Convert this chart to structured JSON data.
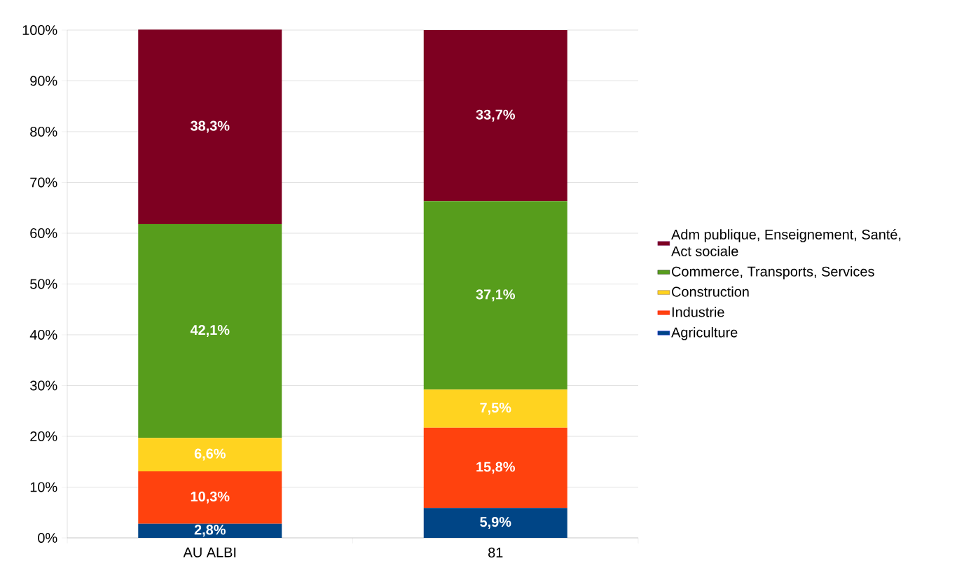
{
  "chart_data": {
    "type": "bar",
    "stacked": true,
    "categories": [
      "AU ALBI",
      "81"
    ],
    "series": [
      {
        "name": "Agriculture",
        "color": "#004586",
        "values": [
          2.8,
          5.9
        ],
        "value_labels": [
          "2,8%",
          "5,9%"
        ]
      },
      {
        "name": "Industrie",
        "color": "#ff420e",
        "values": [
          10.3,
          15.8
        ],
        "value_labels": [
          "10,3%",
          "15,8%"
        ]
      },
      {
        "name": "Construction",
        "color": "#ffd320",
        "values": [
          6.6,
          7.5
        ],
        "value_labels": [
          "6,6%",
          "7,5%"
        ]
      },
      {
        "name": "Commerce, Transports, Services",
        "color": "#579d1c",
        "values": [
          42.1,
          37.1
        ],
        "value_labels": [
          "42,1%",
          "37,1%"
        ]
      },
      {
        "name": "Adm publique, Enseignement, Santé, Act sociale",
        "color": "#7e0021",
        "values": [
          38.3,
          33.7
        ],
        "value_labels": [
          "38,3%",
          "33,7%"
        ]
      }
    ],
    "ylim": [
      0,
      100
    ],
    "yticks": [
      {
        "value": 0,
        "label": "0%"
      },
      {
        "value": 10,
        "label": "10%"
      },
      {
        "value": 20,
        "label": "20%"
      },
      {
        "value": 30,
        "label": "30%"
      },
      {
        "value": 40,
        "label": "40%"
      },
      {
        "value": 50,
        "label": "50%"
      },
      {
        "value": 60,
        "label": "60%"
      },
      {
        "value": 70,
        "label": "70%"
      },
      {
        "value": 80,
        "label": "80%"
      },
      {
        "value": 90,
        "label": "90%"
      },
      {
        "value": 100,
        "label": "100%"
      }
    ],
    "grid": "y",
    "legend": "right"
  }
}
